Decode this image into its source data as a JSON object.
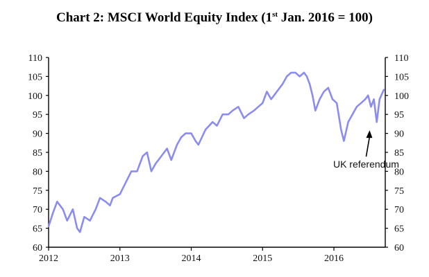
{
  "title": {
    "prefix": "Chart 2: MSCI World Equity Index (1",
    "sup": "st",
    "suffix": " Jan. 2016 = 100)"
  },
  "chart_data": {
    "type": "line",
    "title": "Chart 2: MSCI World Equity Index (1st Jan. 2016 = 100)",
    "xlabel": "",
    "ylabel": "",
    "x_ticks": [
      "2012",
      "2013",
      "2014",
      "2015",
      "2016"
    ],
    "x_range": [
      2012.0,
      2016.72
    ],
    "ylim": [
      60,
      110
    ],
    "y_ticks": [
      60,
      65,
      70,
      75,
      80,
      85,
      90,
      95,
      100,
      105,
      110
    ],
    "y_axes": "left-and-right",
    "grid": false,
    "legend": "none",
    "line_color": "#8b8cf0",
    "series": [
      {
        "x": [
          2012.0,
          2012.06,
          2012.12,
          2012.2,
          2012.26,
          2012.34,
          2012.4,
          2012.44,
          2012.5,
          2012.58,
          2012.66,
          2012.72,
          2012.8,
          2012.86,
          2012.9,
          2013.0,
          2013.08,
          2013.16,
          2013.24,
          2013.32,
          2013.38,
          2013.44,
          2013.5,
          2013.58,
          2013.66,
          2013.72,
          2013.8,
          2013.86,
          2013.92,
          2014.0,
          2014.06,
          2014.1,
          2014.2,
          2014.3,
          2014.36,
          2014.44,
          2014.52,
          2014.58,
          2014.66,
          2014.74,
          2014.8,
          2014.88,
          2014.94,
          2015.0,
          2015.06,
          2015.12,
          2015.2,
          2015.28,
          2015.34,
          2015.4,
          2015.46,
          2015.52,
          2015.58,
          2015.62,
          2015.66,
          2015.7,
          2015.74,
          2015.8,
          2015.86,
          2015.92,
          2015.98,
          2016.04,
          2016.1,
          2016.14,
          2016.2,
          2016.26,
          2016.32,
          2016.38,
          2016.44,
          2016.48,
          2016.52,
          2016.56,
          2016.6,
          2016.64,
          2016.7
        ],
        "y": [
          65.5,
          69,
          72,
          70,
          67,
          70,
          65,
          64,
          68,
          67,
          70,
          73,
          72,
          71,
          73,
          74,
          77,
          80,
          80,
          84,
          85,
          80,
          82,
          84,
          86,
          83,
          87,
          89,
          90,
          90,
          88,
          87,
          91,
          93,
          92,
          95,
          95,
          96,
          97,
          94,
          95,
          96,
          97,
          98,
          101,
          99,
          101,
          103,
          105,
          106,
          106,
          105,
          106,
          105,
          103,
          100,
          96,
          99,
          101,
          102,
          99,
          98,
          91,
          88,
          93,
          95,
          97,
          98,
          99,
          100,
          97,
          99,
          93,
          99,
          101.5
        ]
      }
    ],
    "annotations": [
      {
        "text": "UK referendum",
        "x": 2016.52,
        "y": 93
      }
    ]
  }
}
